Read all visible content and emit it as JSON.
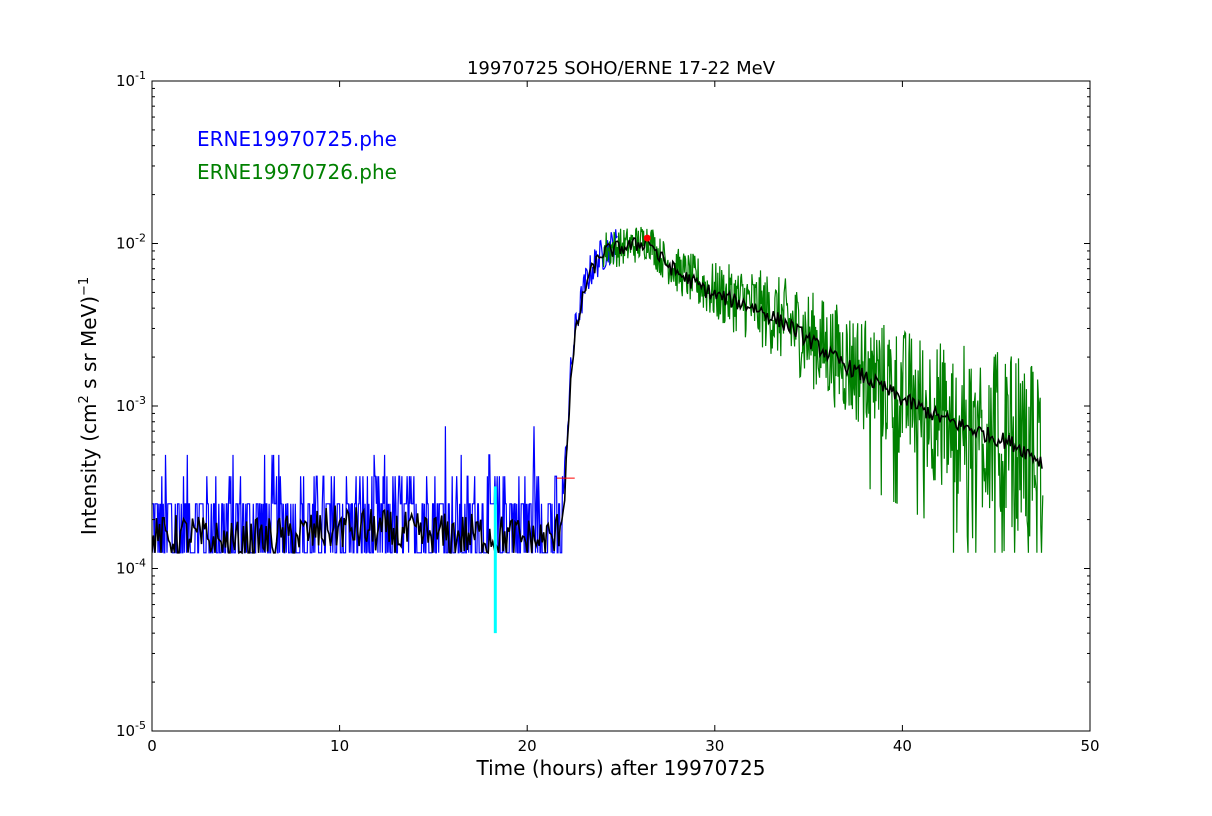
{
  "chart_data": {
    "type": "line",
    "title": "19970725 SOHO/ERNE 17-22 MeV",
    "xlabel": "Time (hours) after 19970725",
    "ylabel_main": "Intensity (cm",
    "ylabel_sup1": "2",
    "ylabel_mid": " s sr MeV)",
    "ylabel_sup2": "−1",
    "xlim": [
      0,
      50
    ],
    "ylim": [
      1e-05,
      0.1
    ],
    "yscale": "log",
    "grid": false,
    "legend_position": "top-left",
    "x_ticks": [
      "0",
      "10",
      "20",
      "30",
      "40",
      "50"
    ],
    "y_ticks": [
      {
        "base": "10",
        "exp": "-5"
      },
      {
        "base": "10",
        "exp": "-4"
      },
      {
        "base": "10",
        "exp": "-3"
      },
      {
        "base": "10",
        "exp": "-2"
      },
      {
        "base": "10",
        "exp": "-1"
      }
    ],
    "series": [
      {
        "name": "ERNE19970725.phe",
        "color": "#0000ff",
        "style": "noisy-line",
        "x": [
          0.0,
          2.0,
          4.0,
          6.0,
          8.0,
          10.0,
          12.0,
          14.0,
          16.0,
          18.0,
          20.0,
          21.5,
          21.9,
          22.1,
          22.3,
          22.6,
          22.9,
          23.2,
          23.6,
          24.0,
          24.3,
          24.6,
          24.8
        ],
        "y": [
          0.00018,
          0.00019,
          0.00018,
          0.00018,
          0.00019,
          0.00019,
          0.00019,
          0.00018,
          0.00019,
          0.00018,
          0.00018,
          0.00018,
          0.00025,
          0.0006,
          0.0015,
          0.0032,
          0.0045,
          0.0062,
          0.0075,
          0.0085,
          0.0092,
          0.0097,
          0.0098
        ]
      },
      {
        "name": "ERNE19970726.phe",
        "color": "#008000",
        "style": "noisy-line",
        "x": [
          24.0,
          25.0,
          26.0,
          26.5,
          27.0,
          28.0,
          30.0,
          32.0,
          34.0,
          36.0,
          38.0,
          40.0,
          42.0,
          44.0,
          46.0,
          47.5
        ],
        "y": [
          0.0092,
          0.0095,
          0.01,
          0.0107,
          0.0085,
          0.0068,
          0.005,
          0.0042,
          0.0032,
          0.0022,
          0.0016,
          0.0012,
          0.0009,
          0.00075,
          0.0006,
          0.0005
        ]
      },
      {
        "name": "",
        "color": "#000000",
        "style": "smoothed-line",
        "x": [
          0.0,
          2.0,
          4.0,
          6.0,
          8.0,
          10.0,
          12.0,
          14.0,
          16.0,
          18.0,
          20.0,
          21.5,
          21.9,
          22.1,
          22.3,
          22.6,
          22.9,
          23.2,
          23.6,
          24.0,
          25.0,
          26.0,
          26.5,
          27.0,
          28.0,
          30.0,
          32.0,
          34.0,
          36.0,
          38.0,
          40.0,
          42.0,
          44.0,
          46.0,
          47.5
        ],
        "y": [
          0.00015,
          0.00016,
          0.00014,
          0.00015,
          0.00016,
          0.00018,
          0.00017,
          0.00016,
          0.00016,
          0.00016,
          0.00015,
          0.00015,
          0.00023,
          0.0005,
          0.0013,
          0.0029,
          0.0042,
          0.006,
          0.0073,
          0.0088,
          0.0094,
          0.0099,
          0.0106,
          0.0083,
          0.0066,
          0.0048,
          0.0041,
          0.0031,
          0.0021,
          0.0015,
          0.0011,
          0.00085,
          0.0007,
          0.00058,
          0.00045
        ]
      }
    ],
    "markers": [
      {
        "name": "cyan-vertical-line",
        "color": "#00ffff",
        "x": 18.3,
        "y_from": 4e-05,
        "y_to": 0.00032
      },
      {
        "name": "red-onset-tick",
        "color": "#ff0000",
        "x": 22.0,
        "y": 0.00036
      },
      {
        "name": "red-peak-point",
        "color": "#ff0000",
        "x": 26.4,
        "y": 0.0108
      }
    ],
    "noise": {
      "blue_base_floor": 0.000125,
      "blue_base_levels": [
        0.000125,
        0.00025,
        0.00037,
        0.0005
      ],
      "green_tail_min": 0.000125
    }
  }
}
